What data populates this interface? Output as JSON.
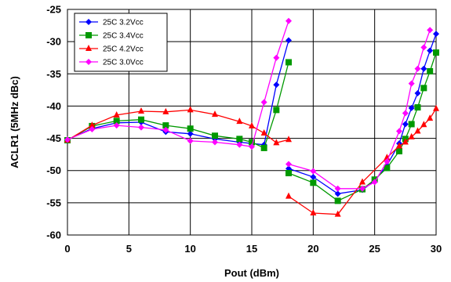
{
  "chart_data": {
    "type": "line",
    "title": "",
    "xlabel": "Pout (dBm)",
    "ylabel": "ACLR1 (5MHz dBc)",
    "xlim": [
      0,
      30
    ],
    "ylim": [
      -60,
      -25
    ],
    "x_ticks": [
      "0",
      "5",
      "10",
      "15",
      "20",
      "25",
      "30"
    ],
    "y_ticks": [
      "-60",
      "-55",
      "-50",
      "-45",
      "-40",
      "-35",
      "-30",
      "-25"
    ],
    "grid": true,
    "legend_position": "top-left",
    "series": [
      {
        "name": "25C 3.2Vcc",
        "color": "#0000FF",
        "marker": "diamond",
        "segments": [
          [
            [
              0,
              -45.2
            ],
            [
              2,
              -43.5
            ],
            [
              4,
              -42.6
            ],
            [
              6,
              -42.5
            ],
            [
              8,
              -44.0
            ],
            [
              10,
              -44.3
            ],
            [
              12,
              -45.1
            ],
            [
              14,
              -45.6
            ],
            [
              15,
              -45.8
            ],
            [
              16,
              -46.0
            ],
            [
              17,
              -36.7
            ],
            [
              18,
              -29.8
            ]
          ],
          [
            [
              18,
              -49.7
            ],
            [
              20,
              -51.0
            ],
            [
              22,
              -53.6
            ],
            [
              24,
              -53.0
            ],
            [
              25,
              -51.6
            ],
            [
              26,
              -49.2
            ],
            [
              27,
              -45.8
            ],
            [
              27.5,
              -42.8
            ],
            [
              28,
              -40.3
            ],
            [
              28.5,
              -38.0
            ],
            [
              29,
              -34.2
            ],
            [
              29.5,
              -31.4
            ],
            [
              30,
              -28.8
            ]
          ]
        ]
      },
      {
        "name": "25C 3.4Vcc",
        "color": "#009900",
        "marker": "square",
        "segments": [
          [
            [
              0,
              -45.3
            ],
            [
              2,
              -43.1
            ],
            [
              4,
              -42.3
            ],
            [
              6,
              -42.1
            ],
            [
              8,
              -43.0
            ],
            [
              10,
              -43.5
            ],
            [
              12,
              -44.6
            ],
            [
              14,
              -45.1
            ],
            [
              15,
              -45.6
            ],
            [
              16,
              -46.5
            ],
            [
              17,
              -40.6
            ],
            [
              18,
              -33.2
            ]
          ],
          [
            [
              18,
              -50.4
            ],
            [
              20,
              -51.9
            ],
            [
              22,
              -54.7
            ],
            [
              24,
              -52.9
            ],
            [
              25,
              -51.4
            ],
            [
              26,
              -49.6
            ],
            [
              27,
              -47.0
            ],
            [
              27.5,
              -45.1
            ],
            [
              28,
              -42.8
            ],
            [
              28.5,
              -40.2
            ],
            [
              29,
              -37.2
            ],
            [
              29.5,
              -34.6
            ],
            [
              30,
              -31.7
            ]
          ]
        ]
      },
      {
        "name": "25C 4.2Vcc",
        "color": "#FF0000",
        "marker": "triangle",
        "segments": [
          [
            [
              0,
              -45.3
            ],
            [
              2,
              -43.0
            ],
            [
              4,
              -41.4
            ],
            [
              6,
              -40.8
            ],
            [
              8,
              -40.9
            ],
            [
              10,
              -40.6
            ],
            [
              12,
              -41.3
            ],
            [
              14,
              -42.4
            ],
            [
              15,
              -43.1
            ],
            [
              16,
              -44.2
            ],
            [
              17,
              -45.7
            ],
            [
              18,
              -45.2
            ]
          ],
          [
            [
              18,
              -54.0
            ],
            [
              20,
              -56.6
            ],
            [
              22,
              -56.8
            ],
            [
              24,
              -51.8
            ],
            [
              26,
              -48.0
            ],
            [
              27,
              -46.2
            ],
            [
              27.5,
              -45.6
            ],
            [
              28,
              -44.8
            ],
            [
              28.5,
              -43.9
            ],
            [
              29,
              -42.9
            ],
            [
              29.5,
              -41.9
            ],
            [
              30,
              -40.4
            ]
          ]
        ]
      },
      {
        "name": "25C 3.0Vcc",
        "color": "#FF00FF",
        "marker": "diamond",
        "segments": [
          [
            [
              0,
              -45.2
            ],
            [
              2,
              -43.6
            ],
            [
              4,
              -43.0
            ],
            [
              6,
              -43.3
            ],
            [
              8,
              -43.7
            ],
            [
              10,
              -45.4
            ],
            [
              12,
              -45.6
            ],
            [
              14,
              -46.0
            ],
            [
              15,
              -46.3
            ],
            [
              16,
              -39.4
            ],
            [
              17,
              -32.5
            ],
            [
              18,
              -26.8
            ]
          ],
          [
            [
              18,
              -49.0
            ],
            [
              20,
              -50.1
            ],
            [
              22,
              -52.8
            ],
            [
              24,
              -52.8
            ],
            [
              25,
              -51.8
            ],
            [
              26,
              -48.6
            ],
            [
              27,
              -43.9
            ],
            [
              27.5,
              -41.1
            ],
            [
              28,
              -36.5
            ],
            [
              28.5,
              -34.2
            ],
            [
              29,
              -30.9
            ],
            [
              29.5,
              -28.2
            ]
          ]
        ]
      }
    ]
  }
}
